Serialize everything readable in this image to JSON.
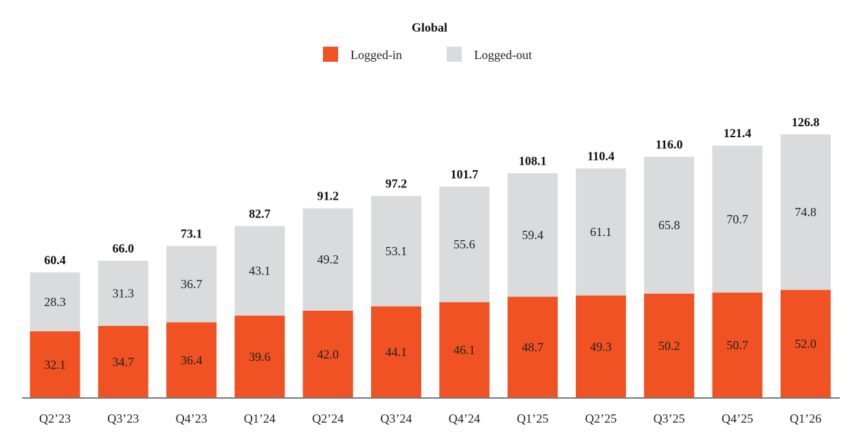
{
  "chart_data": {
    "type": "bar",
    "stacked": true,
    "title": "Global",
    "categories": [
      "Q2’23",
      "Q3’23",
      "Q4’23",
      "Q1’24",
      "Q2’24",
      "Q3’24",
      "Q4’24",
      "Q1’25",
      "Q2’25",
      "Q3’25",
      "Q4’25",
      "Q1’26"
    ],
    "series": [
      {
        "name": "Logged-in",
        "color": "#f05223",
        "values": [
          32.1,
          34.7,
          36.4,
          39.6,
          42.0,
          44.1,
          46.1,
          48.7,
          49.3,
          50.2,
          50.7,
          52.0
        ]
      },
      {
        "name": "Logged-out",
        "color": "#dadbdc",
        "values": [
          28.3,
          31.3,
          36.7,
          43.1,
          49.2,
          53.1,
          55.6,
          59.4,
          61.1,
          65.8,
          70.7,
          74.8
        ]
      }
    ],
    "totals": [
      60.4,
      66.0,
      73.1,
      82.7,
      91.2,
      97.2,
      101.7,
      108.1,
      110.4,
      116.0,
      121.4,
      126.8
    ],
    "legend": "top-center",
    "grid": false
  }
}
